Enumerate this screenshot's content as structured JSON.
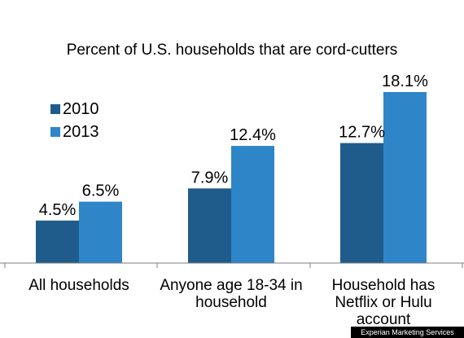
{
  "chart_data": {
    "type": "bar",
    "title": "Percent of U.S. households that are cord-cutters",
    "categories": [
      [
        "All households"
      ],
      [
        "Anyone age 18-34 in",
        "household"
      ],
      [
        "Household has",
        "Netflix or Hulu",
        "account"
      ]
    ],
    "series": [
      {
        "name": "2010",
        "color": "#1f5c8b",
        "values": [
          4.5,
          7.9,
          12.7
        ],
        "labels": [
          "4.5%",
          "7.9%",
          "12.7%"
        ]
      },
      {
        "name": "2013",
        "color": "#2e86c9",
        "values": [
          6.5,
          12.4,
          18.1
        ],
        "labels": [
          "6.5%",
          "12.4%",
          "18.1%"
        ]
      }
    ],
    "ylim": [
      0,
      20
    ],
    "grid": false,
    "legend": "top-left",
    "xlabel": "",
    "ylabel": ""
  },
  "credit": "Experian Marketing Services"
}
